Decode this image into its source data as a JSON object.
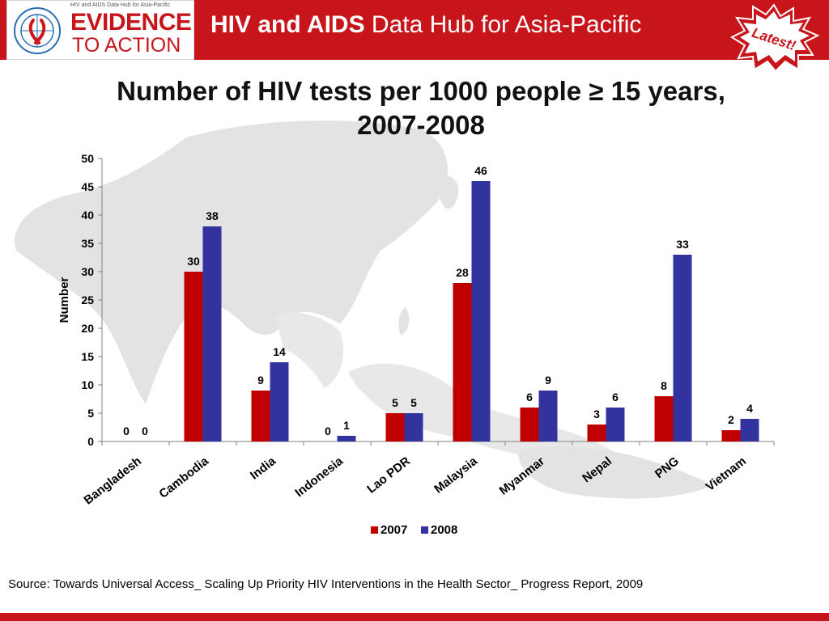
{
  "header": {
    "logo_small_text": "HIV and AIDS Data Hub for Asia-Pacific",
    "logo_line1": "EVIDENCE",
    "logo_line2": "TO ACTION",
    "title_bold": "HIV and AIDS",
    "title_rest": " Data Hub for Asia-Pacific",
    "badge_text": "Latest!"
  },
  "colors": {
    "brand_red": "#c8151b",
    "series_2007": "#c00000",
    "series_2008": "#3333a0"
  },
  "chart_data": {
    "type": "bar",
    "title": "Number of HIV tests per 1000 people ≥ 15 years, 2007-2008",
    "ylabel": "Number",
    "xlabel": "",
    "ylim": [
      0,
      50
    ],
    "yticks": [
      0,
      5,
      10,
      15,
      20,
      25,
      30,
      35,
      40,
      45,
      50
    ],
    "categories": [
      "Bangladesh",
      "Cambodia",
      "India",
      "Indonesia",
      "Lao PDR",
      "Malaysia",
      "Myanmar",
      "Nepal",
      "PNG",
      "Vietnam"
    ],
    "series": [
      {
        "name": "2007",
        "values": [
          0,
          30,
          9,
          0,
          5,
          28,
          6,
          3,
          8,
          2
        ]
      },
      {
        "name": "2008",
        "values": [
          0,
          38,
          14,
          1,
          5,
          46,
          9,
          6,
          33,
          4
        ]
      }
    ],
    "legend": "bottom",
    "grid": false
  },
  "source": "Source: Towards Universal  Access_ Scaling Up Priority HIV Interventions in the Health Sector_ Progress Report, 2009"
}
